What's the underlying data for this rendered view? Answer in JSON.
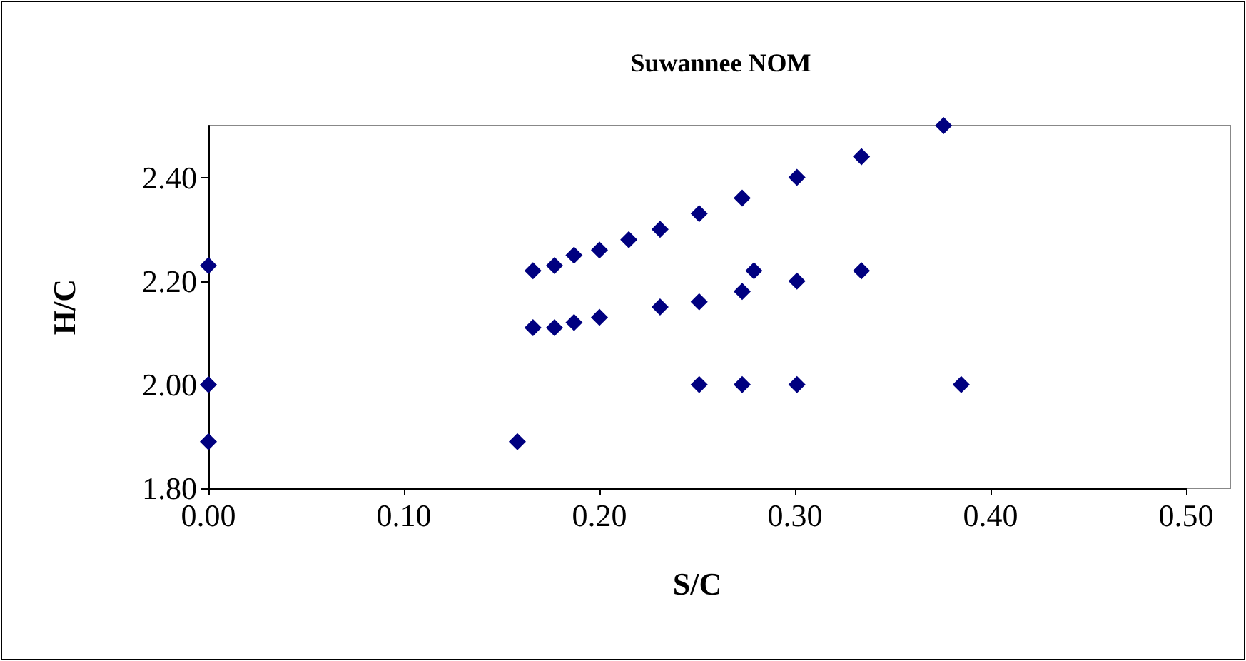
{
  "chart_data": {
    "type": "scatter",
    "title": "Suwannee NOM",
    "xlabel": "S/C",
    "ylabel": "H/C",
    "xlim": [
      0,
      0.5
    ],
    "xticks": [
      {
        "value": 0,
        "label": "0.00"
      },
      {
        "value": 0.1,
        "label": "0.10"
      },
      {
        "value": 0.2,
        "label": "0.20"
      },
      {
        "value": 0.3,
        "label": "0.30"
      },
      {
        "value": 0.4,
        "label": "0.40"
      },
      {
        "value": 0.5,
        "label": "0.50"
      }
    ],
    "ylim": [
      1.8,
      2.5
    ],
    "yticks": [
      {
        "value": 1.8,
        "label": "1.80"
      },
      {
        "value": 2.0,
        "label": "2.00"
      },
      {
        "value": 2.2,
        "label": "2.20"
      },
      {
        "value": 2.4,
        "label": "2.40"
      }
    ],
    "grid": false,
    "marker": "diamond",
    "series": [
      {
        "color": "#000080",
        "x": [
          0,
          0,
          0,
          0.158,
          0.166,
          0.177,
          0.187,
          0.2,
          0.215,
          0.231,
          0.251,
          0.273,
          0.301,
          0.334,
          0.376,
          0.166,
          0.177,
          0.187,
          0.2,
          0.231,
          0.251,
          0.273,
          0.279,
          0.301,
          0.334,
          0.251,
          0.273,
          0.301,
          0.385
        ],
        "values": [
          2.23,
          2.0,
          1.89,
          1.89,
          2.22,
          2.23,
          2.25,
          2.26,
          2.28,
          2.3,
          2.33,
          2.36,
          2.4,
          2.44,
          2.5,
          2.11,
          2.11,
          2.12,
          2.13,
          2.15,
          2.16,
          2.18,
          2.22,
          2.2,
          2.22,
          2.0,
          2.0,
          2.0,
          2.0
        ]
      }
    ]
  }
}
